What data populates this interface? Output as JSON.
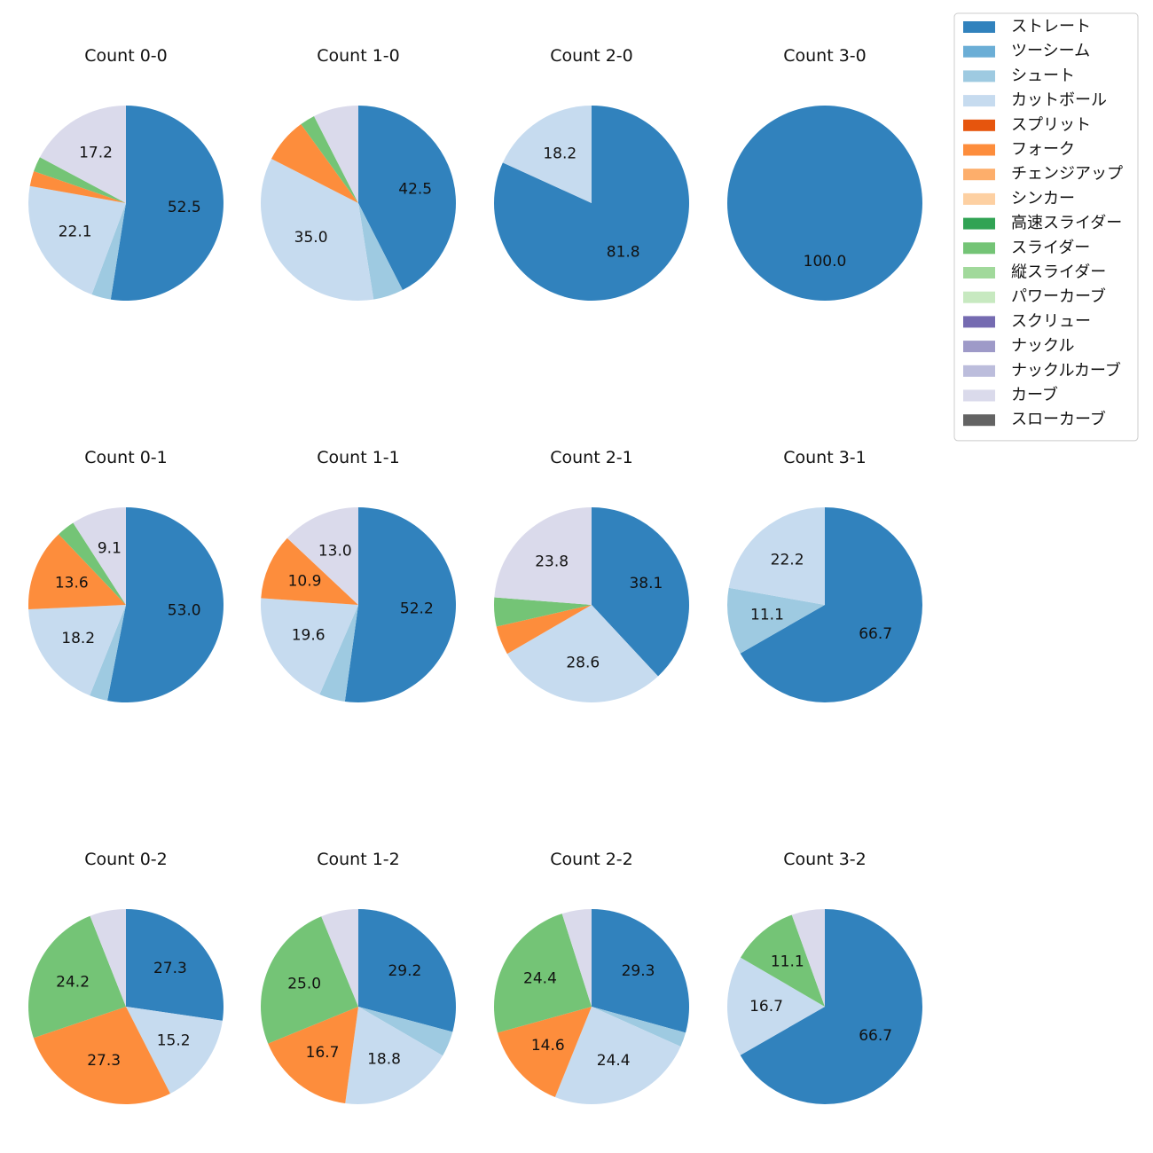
{
  "chart_data": {
    "type": "pie",
    "legend": {
      "placement": "top-right",
      "entries": [
        {
          "name": "ストレート",
          "color": "#3182bd"
        },
        {
          "name": "ツーシーム",
          "color": "#6baed6"
        },
        {
          "name": "シュート",
          "color": "#9ecae1"
        },
        {
          "name": "カットボール",
          "color": "#c6dbef"
        },
        {
          "name": "スプリット",
          "color": "#e6550d"
        },
        {
          "name": "フォーク",
          "color": "#fd8d3c"
        },
        {
          "name": "チェンジアップ",
          "color": "#fdae6b"
        },
        {
          "name": "シンカー",
          "color": "#fdd0a2"
        },
        {
          "name": "高速スライダー",
          "color": "#31a354"
        },
        {
          "name": "スライダー",
          "color": "#74c476"
        },
        {
          "name": "縦スライダー",
          "color": "#a1d99b"
        },
        {
          "name": "パワーカーブ",
          "color": "#c7e9c0"
        },
        {
          "name": "スクリュー",
          "color": "#756bb1"
        },
        {
          "name": "ナックル",
          "color": "#9e9ac8"
        },
        {
          "name": "ナックルカーブ",
          "color": "#bcbddc"
        },
        {
          "name": "カーブ",
          "color": "#dadaeb"
        },
        {
          "name": "スローカーブ",
          "color": "#636363"
        }
      ]
    },
    "charts": [
      {
        "title": "Count 0-0",
        "slices": [
          {
            "pitch": "ストレート",
            "value": 52.5,
            "label": "52.5"
          },
          {
            "pitch": "シュート",
            "value": 3.2,
            "label": ""
          },
          {
            "pitch": "カットボール",
            "value": 22.1,
            "label": "22.1"
          },
          {
            "pitch": "フォーク",
            "value": 2.5,
            "label": ""
          },
          {
            "pitch": "スライダー",
            "value": 2.5,
            "label": ""
          },
          {
            "pitch": "カーブ",
            "value": 17.2,
            "label": "17.2"
          }
        ]
      },
      {
        "title": "Count 1-0",
        "slices": [
          {
            "pitch": "ストレート",
            "value": 42.5,
            "label": "42.5"
          },
          {
            "pitch": "シュート",
            "value": 5.0,
            "label": ""
          },
          {
            "pitch": "カットボール",
            "value": 35.0,
            "label": "35.0"
          },
          {
            "pitch": "フォーク",
            "value": 7.5,
            "label": ""
          },
          {
            "pitch": "スライダー",
            "value": 2.5,
            "label": ""
          },
          {
            "pitch": "カーブ",
            "value": 7.5,
            "label": ""
          }
        ]
      },
      {
        "title": "Count 2-0",
        "slices": [
          {
            "pitch": "ストレート",
            "value": 81.8,
            "label": "81.8"
          },
          {
            "pitch": "カットボール",
            "value": 18.2,
            "label": "18.2"
          }
        ]
      },
      {
        "title": "Count 3-0",
        "slices": [
          {
            "pitch": "ストレート",
            "value": 100.0,
            "label": "100.0"
          }
        ]
      },
      {
        "title": "Count 0-1",
        "slices": [
          {
            "pitch": "ストレート",
            "value": 53.0,
            "label": "53.0"
          },
          {
            "pitch": "シュート",
            "value": 3.0,
            "label": ""
          },
          {
            "pitch": "カットボール",
            "value": 18.2,
            "label": "18.2"
          },
          {
            "pitch": "フォーク",
            "value": 13.6,
            "label": "13.6"
          },
          {
            "pitch": "スライダー",
            "value": 3.0,
            "label": ""
          },
          {
            "pitch": "カーブ",
            "value": 9.1,
            "label": "9.1"
          }
        ]
      },
      {
        "title": "Count 1-1",
        "slices": [
          {
            "pitch": "ストレート",
            "value": 52.2,
            "label": "52.2"
          },
          {
            "pitch": "シュート",
            "value": 4.3,
            "label": ""
          },
          {
            "pitch": "カットボール",
            "value": 19.6,
            "label": "19.6"
          },
          {
            "pitch": "フォーク",
            "value": 10.9,
            "label": "10.9"
          },
          {
            "pitch": "カーブ",
            "value": 13.0,
            "label": "13.0"
          }
        ]
      },
      {
        "title": "Count 2-1",
        "slices": [
          {
            "pitch": "ストレート",
            "value": 38.1,
            "label": "38.1"
          },
          {
            "pitch": "カットボール",
            "value": 28.6,
            "label": "28.6"
          },
          {
            "pitch": "フォーク",
            "value": 4.8,
            "label": ""
          },
          {
            "pitch": "スライダー",
            "value": 4.8,
            "label": ""
          },
          {
            "pitch": "カーブ",
            "value": 23.8,
            "label": "23.8"
          }
        ]
      },
      {
        "title": "Count 3-1",
        "slices": [
          {
            "pitch": "ストレート",
            "value": 66.7,
            "label": "66.7"
          },
          {
            "pitch": "シュート",
            "value": 11.1,
            "label": "11.1"
          },
          {
            "pitch": "カットボール",
            "value": 22.2,
            "label": "22.2"
          }
        ]
      },
      {
        "title": "Count 0-2",
        "slices": [
          {
            "pitch": "ストレート",
            "value": 27.3,
            "label": "27.3"
          },
          {
            "pitch": "カットボール",
            "value": 15.2,
            "label": "15.2"
          },
          {
            "pitch": "フォーク",
            "value": 27.3,
            "label": "27.3"
          },
          {
            "pitch": "スライダー",
            "value": 24.2,
            "label": "24.2"
          },
          {
            "pitch": "カーブ",
            "value": 6.0,
            "label": ""
          }
        ]
      },
      {
        "title": "Count 1-2",
        "slices": [
          {
            "pitch": "ストレート",
            "value": 29.2,
            "label": "29.2"
          },
          {
            "pitch": "シュート",
            "value": 4.2,
            "label": ""
          },
          {
            "pitch": "カットボール",
            "value": 18.8,
            "label": "18.8"
          },
          {
            "pitch": "フォーク",
            "value": 16.7,
            "label": "16.7"
          },
          {
            "pitch": "スライダー",
            "value": 25.0,
            "label": "25.0"
          },
          {
            "pitch": "カーブ",
            "value": 6.2,
            "label": ""
          }
        ]
      },
      {
        "title": "Count 2-2",
        "slices": [
          {
            "pitch": "ストレート",
            "value": 29.3,
            "label": "29.3"
          },
          {
            "pitch": "シュート",
            "value": 2.4,
            "label": ""
          },
          {
            "pitch": "カットボール",
            "value": 24.4,
            "label": "24.4"
          },
          {
            "pitch": "フォーク",
            "value": 14.6,
            "label": "14.6"
          },
          {
            "pitch": "スライダー",
            "value": 24.4,
            "label": "24.4"
          },
          {
            "pitch": "カーブ",
            "value": 4.9,
            "label": ""
          }
        ]
      },
      {
        "title": "Count 3-2",
        "slices": [
          {
            "pitch": "ストレート",
            "value": 66.7,
            "label": "66.7"
          },
          {
            "pitch": "カットボール",
            "value": 16.7,
            "label": "16.7"
          },
          {
            "pitch": "スライダー",
            "value": 11.1,
            "label": "11.1"
          },
          {
            "pitch": "カーブ",
            "value": 5.5,
            "label": ""
          }
        ]
      }
    ]
  }
}
